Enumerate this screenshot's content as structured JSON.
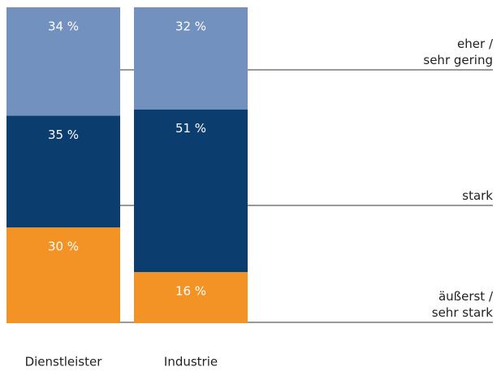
{
  "chart_data": {
    "type": "stacked_bar",
    "categories": [
      "Dienstleister",
      "Industrie"
    ],
    "series": [
      {
        "name": "äußerst /\nsehr stark",
        "color": "#f39325",
        "values": [
          30,
          16
        ],
        "value_labels": [
          "30 %",
          "16 %"
        ]
      },
      {
        "name": "stark",
        "color": "#0b3d6f",
        "values": [
          35,
          51
        ],
        "value_labels": [
          "35 %",
          "51 %"
        ]
      },
      {
        "name": "eher /\nsehr gering",
        "color": "#7291bf",
        "values": [
          34,
          32
        ],
        "value_labels": [
          "34 %",
          "32 %"
        ]
      }
    ],
    "ylim": [
      0,
      100
    ]
  }
}
